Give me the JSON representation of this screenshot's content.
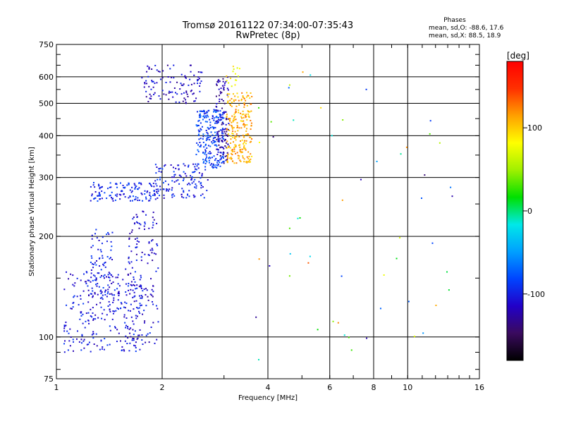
{
  "chart_data": {
    "type": "scatter",
    "title_line1": "Tromsø 20161122 07:34:00-07:35:43",
    "title_line2": "RwPretec (8p)",
    "stats": {
      "heading": "Phases",
      "line1": "mean, sd,O: -88.6, 17.6",
      "line2": "mean, sd,X:  88.5, 18.9"
    },
    "xlabel": "Frequency [MHz]",
    "ylabel": "Stationary phase Virtual Height [km]",
    "x_scale": "log",
    "y_scale": "log",
    "xlim": [
      1,
      16
    ],
    "ylim": [
      75,
      750
    ],
    "x_ticks": [
      {
        "value": 1,
        "label": "1"
      },
      {
        "value": 2,
        "label": "2"
      },
      {
        "value": 4,
        "label": "4"
      },
      {
        "value": 6,
        "label": "6"
      },
      {
        "value": 8,
        "label": "8"
      },
      {
        "value": 10,
        "label": "10"
      },
      {
        "value": 16,
        "label": "16"
      }
    ],
    "y_ticks": [
      {
        "value": 75,
        "label": "75"
      },
      {
        "value": 100,
        "label": "100"
      },
      {
        "value": 200,
        "label": "200"
      },
      {
        "value": 300,
        "label": "300"
      },
      {
        "value": 400,
        "label": "400"
      },
      {
        "value": 500,
        "label": "500"
      },
      {
        "value": 600,
        "label": "600"
      },
      {
        "value": 750,
        "label": "750"
      }
    ],
    "x_grid": [
      2,
      4,
      6,
      8,
      10
    ],
    "y_grid": [
      100,
      200,
      300,
      400,
      500,
      600
    ],
    "grid": true,
    "colorbar": {
      "unit_label": "[deg]",
      "range": [
        -180,
        180
      ],
      "ticks": [
        {
          "value": 100,
          "label": "100"
        },
        {
          "value": 0,
          "label": "0"
        },
        {
          "value": -100,
          "label": "-100"
        }
      ],
      "colors": [
        "#000000",
        "#3a0a5e",
        "#2200c8",
        "#0044ff",
        "#00a0ff",
        "#00e8e8",
        "#00e000",
        "#a0f000",
        "#ffff00",
        "#ffa000",
        "#ff3000",
        "#ff0000"
      ]
    },
    "clusters": [
      {
        "name": "low-o",
        "x": [
          1.05,
          1.75
        ],
        "y": [
          90,
          160
        ],
        "phase": -105,
        "n": 260
      },
      {
        "name": "low-o-2",
        "x": [
          1.25,
          1.45
        ],
        "y": [
          120,
          210
        ],
        "phase": -100,
        "n": 90
      },
      {
        "name": "mid-o",
        "x": [
          1.6,
          1.95
        ],
        "y": [
          95,
          240
        ],
        "phase": -110,
        "n": 140
      },
      {
        "name": "f-band-o",
        "x": [
          1.25,
          1.95
        ],
        "y": [
          255,
          290
        ],
        "phase": -95,
        "n": 130
      },
      {
        "name": "f-rise-o",
        "x": [
          1.9,
          2.7
        ],
        "y": [
          260,
          330
        ],
        "phase": -100,
        "n": 130
      },
      {
        "name": "f-trace-o",
        "x": [
          2.5,
          3.0
        ],
        "y": [
          320,
          480
        ],
        "phase": -85,
        "n": 230
      },
      {
        "name": "f-top-o",
        "x": [
          2.85,
          3.1
        ],
        "y": [
          330,
          600
        ],
        "phase": -125,
        "n": 110
      },
      {
        "name": "e-top-o",
        "x": [
          1.75,
          2.6
        ],
        "y": [
          500,
          650
        ],
        "phase": -115,
        "n": 110
      },
      {
        "name": "f-x",
        "x": [
          3.05,
          3.6
        ],
        "y": [
          330,
          540
        ],
        "phase": 110,
        "n": 230
      },
      {
        "name": "f-x-top",
        "x": [
          3.05,
          3.4
        ],
        "y": [
          560,
          650
        ],
        "phase": 85,
        "n": 15
      },
      {
        "name": "scatter-sparse",
        "x": [
          3.6,
          14
        ],
        "y": [
          85,
          640
        ],
        "phase": 0,
        "n": 55
      }
    ]
  }
}
